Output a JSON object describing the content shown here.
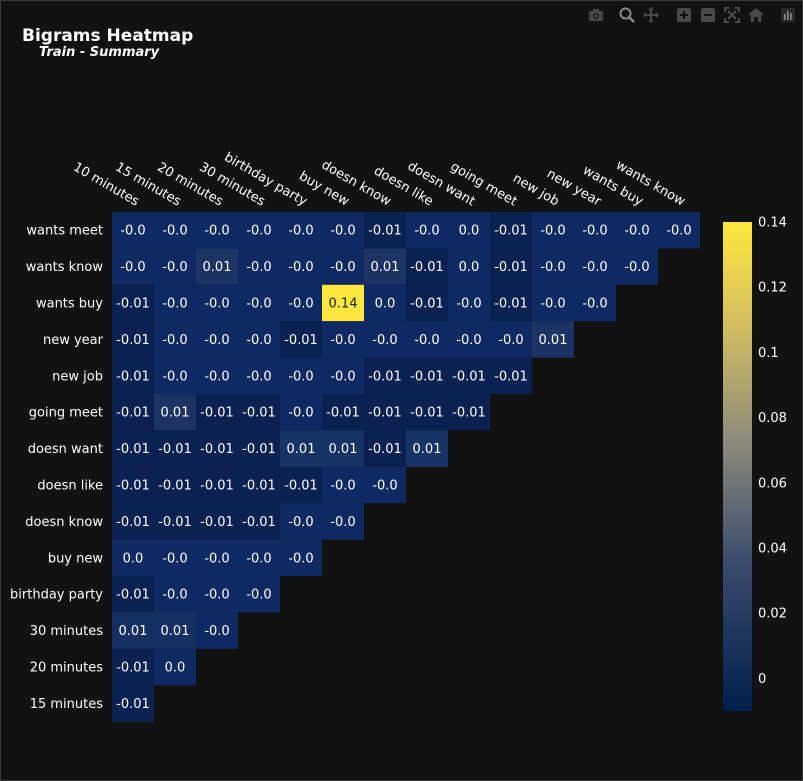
{
  "chart_data": {
    "type": "heatmap",
    "title": "Bigrams Heatmap",
    "subtitle": "Train - Summary",
    "x_categories": [
      "10 minutes",
      "15 minutes",
      "20 minutes",
      "30 minutes",
      "birthday party",
      "buy new",
      "doesn know",
      "doesn like",
      "doesn want",
      "going meet",
      "new job",
      "new year",
      "wants buy",
      "wants know"
    ],
    "y_categories": [
      "wants meet",
      "wants know",
      "wants buy",
      "new year",
      "new job",
      "going meet",
      "doesn want",
      "doesn like",
      "doesn know",
      "buy new",
      "birthday party",
      "30 minutes",
      "20 minutes",
      "15 minutes"
    ],
    "values": [
      [
        -0.0,
        -0.0,
        -0.0,
        -0.0,
        -0.0,
        -0.0,
        -0.01,
        -0.0,
        0.0,
        -0.01,
        -0.0,
        -0.0,
        -0.0,
        -0.0
      ],
      [
        -0.0,
        -0.0,
        0.01,
        -0.0,
        -0.0,
        -0.0,
        0.01,
        -0.01,
        0.0,
        -0.01,
        -0.0,
        -0.0,
        -0.0
      ],
      [
        -0.01,
        -0.0,
        -0.0,
        -0.0,
        -0.0,
        0.14,
        0.0,
        -0.01,
        -0.0,
        -0.01,
        -0.0,
        -0.0
      ],
      [
        -0.01,
        -0.0,
        -0.0,
        -0.0,
        -0.01,
        -0.0,
        -0.0,
        -0.0,
        -0.0,
        -0.0,
        0.01
      ],
      [
        -0.01,
        -0.0,
        -0.0,
        -0.0,
        -0.0,
        -0.0,
        -0.01,
        -0.01,
        -0.01,
        -0.01
      ],
      [
        -0.01,
        0.01,
        -0.01,
        -0.01,
        -0.0,
        -0.01,
        -0.01,
        -0.01,
        -0.01
      ],
      [
        -0.01,
        -0.01,
        -0.01,
        -0.01,
        0.01,
        0.01,
        -0.01,
        0.01
      ],
      [
        -0.01,
        -0.01,
        -0.01,
        -0.01,
        -0.01,
        -0.0,
        -0.0
      ],
      [
        -0.01,
        -0.01,
        -0.01,
        -0.01,
        -0.0,
        -0.0
      ],
      [
        0.0,
        -0.0,
        -0.0,
        -0.0,
        -0.0
      ],
      [
        -0.01,
        -0.0,
        -0.0,
        -0.0
      ],
      [
        0.01,
        0.01,
        -0.0
      ],
      [
        -0.01,
        0.0
      ],
      [
        -0.01
      ]
    ],
    "cell_colors": [
      [
        "#0f2a62",
        "#0f2a62",
        "#0f2a62",
        "#0f2a62",
        "#0f2a62",
        "#0f2a62",
        "#0a2152",
        "#0f2a62",
        "#0f2a62",
        "#0a2152",
        "#0f2a62",
        "#0f2a62",
        "#0f2a62",
        "#0f2a62"
      ],
      [
        "#0f2a62",
        "#0f2a62",
        "#1c3363",
        "#0f2a62",
        "#0f2a62",
        "#0f2a62",
        "#1c3363",
        "#0a2152",
        "#0f2a62",
        "#0a2152",
        "#0f2a62",
        "#0f2a62",
        "#0f2a62"
      ],
      [
        "#0a2152",
        "#0f2a62",
        "#0f2a62",
        "#0f2a62",
        "#0f2a62",
        "#fde73e",
        "#0f2a62",
        "#0a2152",
        "#0f2a62",
        "#0a2152",
        "#0f2a62",
        "#0f2a62"
      ],
      [
        "#0a2152",
        "#0f2a62",
        "#0f2a62",
        "#0f2a62",
        "#0a2152",
        "#0f2a62",
        "#0f2a62",
        "#0f2a62",
        "#0f2a62",
        "#0f2a62",
        "#1c3363"
      ],
      [
        "#0a2152",
        "#0f2a62",
        "#0f2a62",
        "#0f2a62",
        "#0f2a62",
        "#0f2a62",
        "#0a2152",
        "#0a2152",
        "#0a2152",
        "#0a2152"
      ],
      [
        "#0a2152",
        "#1c3363",
        "#0a2152",
        "#0a2152",
        "#0f2a62",
        "#0a2152",
        "#0a2152",
        "#0a2152",
        "#0a2152"
      ],
      [
        "#0a2152",
        "#0a2152",
        "#0a2152",
        "#0a2152",
        "#183466",
        "#183466",
        "#0a2152",
        "#183466"
      ],
      [
        "#0a2152",
        "#0a2152",
        "#0a2152",
        "#0a2152",
        "#0a2152",
        "#0f2a62",
        "#0f2a62"
      ],
      [
        "#0a2152",
        "#0a2152",
        "#0a2152",
        "#0a2152",
        "#0f2a62",
        "#0f2a62"
      ],
      [
        "#0f2a62",
        "#0f2a62",
        "#0f2a62",
        "#0f2a62",
        "#0f2a62"
      ],
      [
        "#0a2152",
        "#0f2a62",
        "#0f2a62",
        "#0f2a62"
      ],
      [
        "#162f63",
        "#162f63",
        "#0f2a62"
      ],
      [
        "#0a2152",
        "#0f2a62"
      ],
      [
        "#0a2152"
      ]
    ],
    "colorscale": [
      "#00204c",
      "#3a4b6d",
      "#8c8a7b",
      "#d6c060",
      "#fde73e"
    ],
    "colorbar": {
      "min": -0.01,
      "max": 0.14,
      "ticks": [
        "0.14",
        "0.12",
        "0.1",
        "0.08",
        "0.06",
        "0.04",
        "0.02",
        "0"
      ]
    },
    "text_color_light": "#ffffff",
    "text_color_dark": "#1a1a1a",
    "axis_text_color": "#ffffff",
    "background": "#121212"
  },
  "toolbar": {
    "icons": [
      "camera-icon",
      "zoom-icon",
      "pan-icon",
      "zoom-in-icon",
      "zoom-out-icon",
      "autoscale-icon",
      "home-icon",
      "plotly-logo-icon"
    ]
  }
}
